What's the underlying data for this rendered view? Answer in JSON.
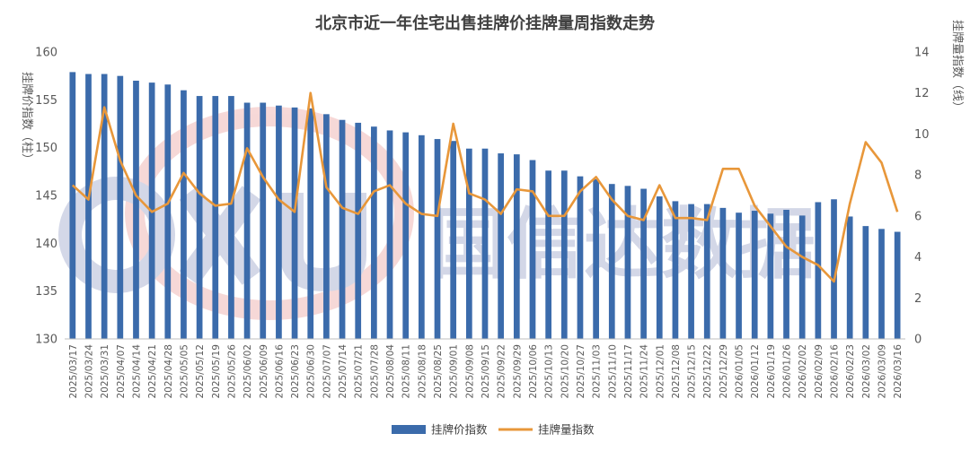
{
  "chart_data": {
    "type": "bar",
    "title": "北京市近一年住宅出售挂牌价挂牌量周指数走势",
    "ylabel": "挂牌价指数（柱）",
    "y2label": "挂牌量指数（线）",
    "ylim": [
      130,
      160
    ],
    "y2lim": [
      0,
      14
    ],
    "yticks": [
      "130",
      "135",
      "140",
      "145",
      "150",
      "155",
      "160"
    ],
    "y2ticks": [
      "0",
      "2",
      "4",
      "6",
      "8",
      "10",
      "12",
      "14"
    ],
    "grid": false,
    "legend_position": "bottom",
    "watermark": "国信达数据",
    "categories": [
      "2025/03/17",
      "2025/03/24",
      "2025/03/31",
      "2025/04/07",
      "2025/04/14",
      "2025/04/21",
      "2025/04/28",
      "2025/05/05",
      "2025/05/12",
      "2025/05/19",
      "2025/05/26",
      "2025/06/02",
      "2025/06/09",
      "2025/06/16",
      "2025/06/23",
      "2025/06/30",
      "2025/07/07",
      "2025/07/14",
      "2025/07/21",
      "2025/07/28",
      "2025/08/04",
      "2025/08/11",
      "2025/08/18",
      "2025/08/25",
      "2025/09/01",
      "2025/09/08",
      "2025/09/15",
      "2025/09/22",
      "2025/09/29",
      "2025/10/06",
      "2025/10/13",
      "2025/10/20",
      "2025/10/27",
      "2025/11/03",
      "2025/11/10",
      "2025/11/17",
      "2025/11/24",
      "2025/12/01",
      "2025/12/08",
      "2025/12/15",
      "2025/12/22",
      "2025/12/29",
      "2026/01/05",
      "2026/01/12",
      "2026/01/19",
      "2026/01/26",
      "2026/02/02",
      "2026/02/09",
      "2026/02/16",
      "2026/02/23",
      "2026/03/02",
      "2026/03/09",
      "2026/03/16"
    ],
    "series": [
      {
        "name": "挂牌价指数",
        "type": "bar",
        "axis": "left",
        "color": "#3b6bab",
        "values": [
          157.9,
          157.7,
          157.7,
          157.5,
          157.0,
          156.8,
          156.6,
          156.0,
          155.4,
          155.4,
          155.4,
          154.7,
          154.7,
          154.4,
          154.2,
          154.1,
          153.5,
          152.9,
          152.6,
          152.2,
          151.8,
          151.6,
          151.3,
          150.9,
          150.7,
          149.9,
          149.9,
          149.4,
          149.3,
          148.7,
          147.6,
          147.6,
          147.0,
          146.7,
          146.2,
          146.0,
          145.7,
          144.9,
          144.4,
          144.1,
          144.1,
          143.7,
          143.2,
          143.4,
          143.1,
          143.5,
          142.9,
          144.3,
          144.6,
          142.8,
          141.8,
          141.5,
          141.2
        ]
      },
      {
        "name": "挂牌量指数",
        "type": "line",
        "axis": "right",
        "color": "#e8973a",
        "values": [
          7.5,
          6.8,
          11.3,
          8.7,
          7.0,
          6.2,
          6.6,
          8.1,
          7.1,
          6.5,
          6.6,
          9.3,
          7.9,
          6.8,
          6.2,
          12.0,
          7.4,
          6.4,
          6.1,
          7.2,
          7.5,
          6.6,
          6.1,
          6.0,
          10.5,
          7.1,
          6.8,
          6.1,
          7.3,
          7.2,
          6.0,
          6.0,
          7.2,
          7.9,
          6.8,
          6.0,
          5.8,
          7.5,
          5.9,
          5.9,
          5.8,
          8.3,
          8.3,
          6.5,
          5.5,
          4.5,
          4.0,
          3.6,
          2.8,
          6.6,
          9.6,
          8.6,
          6.2
        ]
      }
    ]
  }
}
